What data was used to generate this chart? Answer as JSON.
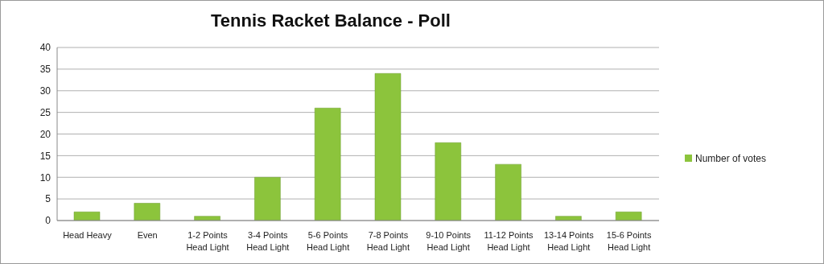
{
  "chart_data": {
    "type": "bar",
    "title": "Tennis Racket Balance - Poll",
    "categories": [
      "Head Heavy",
      "Even",
      "1-2 Points\nHead Light",
      "3-4 Points\nHead Light",
      "5-6 Points\nHead Light",
      "7-8 Points\nHead Light",
      "9-10 Points\nHead Light",
      "11-12 Points\nHead Light",
      "13-14 Points\nHead Light",
      "15-6 Points\nHead Light"
    ],
    "series": [
      {
        "name": "Number of votes",
        "color": "#8cc43c",
        "values": [
          2,
          4,
          1,
          10,
          26,
          34,
          18,
          13,
          1,
          2
        ]
      }
    ],
    "ylim": [
      0,
      40
    ],
    "yticks": [
      0,
      5,
      10,
      15,
      20,
      25,
      30,
      35,
      40
    ],
    "grid": "y",
    "legend": "right"
  }
}
